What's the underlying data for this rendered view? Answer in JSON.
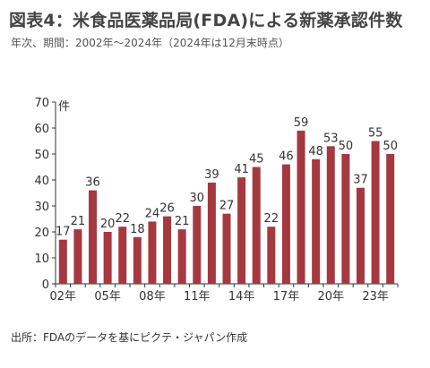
{
  "header": {
    "title": "図表4：米食品医薬品局(FDA)による新薬承認件数",
    "subtitle": "年次、期間：2002年～2024年（2024年は12月末時点）"
  },
  "footer": {
    "source": "出所：FDAのデータを基にピクテ・ジャパン作成"
  },
  "colors": {
    "bar": "#a63840",
    "axis": "#333333",
    "text": "#333333"
  },
  "chart_data": {
    "type": "bar",
    "title": "図表4：米食品医薬品局(FDA)による新薬承認件数",
    "subtitle": "年次、期間：2002年～2024年（2024年は12月末時点）",
    "ylabel": "件",
    "xlabel": "",
    "ylim": [
      0,
      70
    ],
    "yticks": [
      0,
      10,
      20,
      30,
      40,
      50,
      60,
      70
    ],
    "grid": false,
    "categories": [
      "2002",
      "2003",
      "2004",
      "2005",
      "2006",
      "2007",
      "2008",
      "2009",
      "2010",
      "2011",
      "2012",
      "2013",
      "2014",
      "2015",
      "2016",
      "2017",
      "2018",
      "2019",
      "2020",
      "2021",
      "2022",
      "2023",
      "2024"
    ],
    "x_tick_labels": [
      "02年",
      "05年",
      "08年",
      "11年",
      "14年",
      "17年",
      "20年",
      "23年"
    ],
    "x_tick_indices": [
      0,
      3,
      6,
      9,
      12,
      15,
      18,
      21
    ],
    "values": [
      17,
      21,
      36,
      20,
      22,
      18,
      24,
      26,
      21,
      30,
      39,
      27,
      41,
      45,
      22,
      46,
      59,
      48,
      53,
      50,
      37,
      55,
      50
    ],
    "data_labels": [
      "17",
      "21",
      "36",
      "20",
      "22",
      "18",
      "24",
      "26",
      "21",
      "30",
      "39",
      "27",
      "41",
      "45",
      "22",
      "46",
      "59",
      "48",
      "53",
      "50",
      "37",
      "55",
      "50"
    ]
  }
}
